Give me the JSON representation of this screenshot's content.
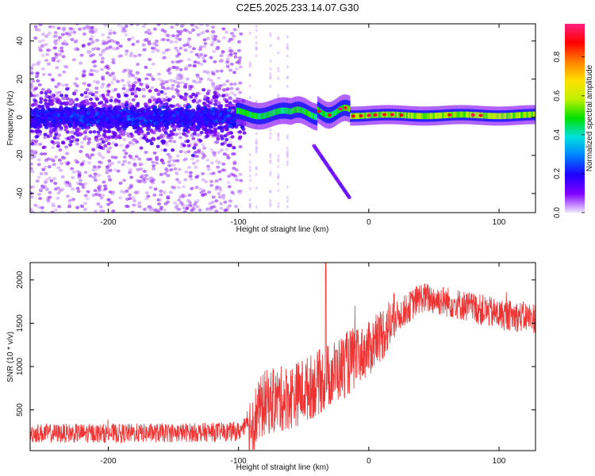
{
  "chart_data": [
    {
      "type": "heatmap",
      "title": "C2E5.2025.233.14.07.G30",
      "xlabel": "Height of straight line (km)",
      "ylabel": "Frequency (Hz)",
      "xlim": [
        -260,
        128
      ],
      "ylim": [
        -50,
        49
      ],
      "xticks": [
        -200,
        -100,
        0,
        100
      ],
      "yticks": [
        -40,
        -20,
        0,
        20,
        40
      ],
      "colorbar": {
        "label": "Normalized spectral amplitude",
        "range": [
          0,
          0.97
        ],
        "ticks": [
          0.0,
          0.2,
          0.4,
          0.6,
          0.8
        ],
        "colormap": [
          "#f0e6ff",
          "#8000ff",
          "#2000ff",
          "#0080ff",
          "#00e0e0",
          "#00e000",
          "#c0f000",
          "#ffe000",
          "#ff8000",
          "#ff0000",
          "#ff2080"
        ]
      },
      "features": {
        "noise_region_end_km": -100,
        "central_band_hz": [
          -5,
          5
        ],
        "trace_ridge_center_hz": 1,
        "descending_branch": {
          "x_km": [
            -42,
            -15
          ],
          "y_hz": [
            -15,
            -42
          ]
        }
      }
    },
    {
      "type": "line",
      "xlabel": "Height of straight line (km)",
      "ylabel": "SNR (10 * v/v)",
      "xlim": [
        -260,
        128
      ],
      "ylim": [
        30,
        2200
      ],
      "xticks": [
        -200,
        -100,
        0,
        100
      ],
      "yticks": [
        500,
        1000,
        1500,
        2000
      ],
      "color": "#ee3333",
      "series": [
        {
          "name": "SNR",
          "x": [
            -260,
            -200,
            -150,
            -100,
            -90,
            -80,
            -60,
            -40,
            -20,
            0,
            20,
            40,
            60,
            80,
            100,
            128
          ],
          "y": [
            230,
            230,
            235,
            250,
            350,
            580,
            650,
            800,
            1000,
            1200,
            1550,
            1800,
            1750,
            1680,
            1600,
            1560
          ]
        }
      ]
    }
  ]
}
